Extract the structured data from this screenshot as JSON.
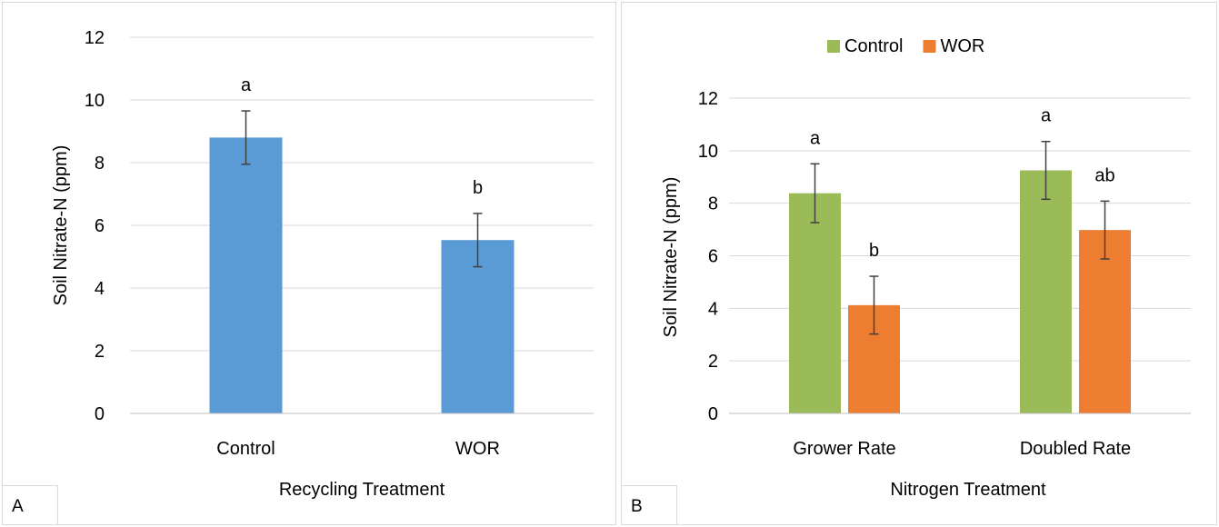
{
  "chart_data": [
    {
      "type": "bar",
      "panel_label": "A",
      "title": "",
      "xlabel": "Recycling Treatment",
      "ylabel": "Soil Nitrate-N (ppm)",
      "ylim": [
        0,
        12
      ],
      "yticks": [
        "0",
        "2",
        "4",
        "6",
        "8",
        "10",
        "12"
      ],
      "grid": true,
      "legend": "none",
      "categories": [
        "Control",
        "WOR"
      ],
      "series": [
        {
          "color": "#5b9bd5",
          "values": [
            8.8,
            5.53
          ],
          "error": [
            0.85,
            0.85
          ],
          "letters": [
            "a",
            "b"
          ]
        }
      ]
    },
    {
      "type": "bar",
      "panel_label": "B",
      "title": "",
      "xlabel": "Nitrogen Treatment",
      "ylabel": "Soil Nitrate-N (ppm)",
      "ylim": [
        0,
        12
      ],
      "yticks": [
        "0",
        "2",
        "4",
        "6",
        "8",
        "10",
        "12"
      ],
      "grid": true,
      "legend": "top",
      "categories": [
        "Grower Rate",
        "Doubled Rate"
      ],
      "series": [
        {
          "name": "Control",
          "color": "#9bbb59",
          "values": [
            8.38,
            9.25
          ],
          "error": [
            1.12,
            1.1
          ],
          "letters": [
            "a",
            "a"
          ]
        },
        {
          "name": "WOR",
          "color": "#ed7d31",
          "values": [
            4.12,
            6.98
          ],
          "error": [
            1.1,
            1.1
          ],
          "letters": [
            "b",
            "ab"
          ]
        }
      ]
    }
  ]
}
